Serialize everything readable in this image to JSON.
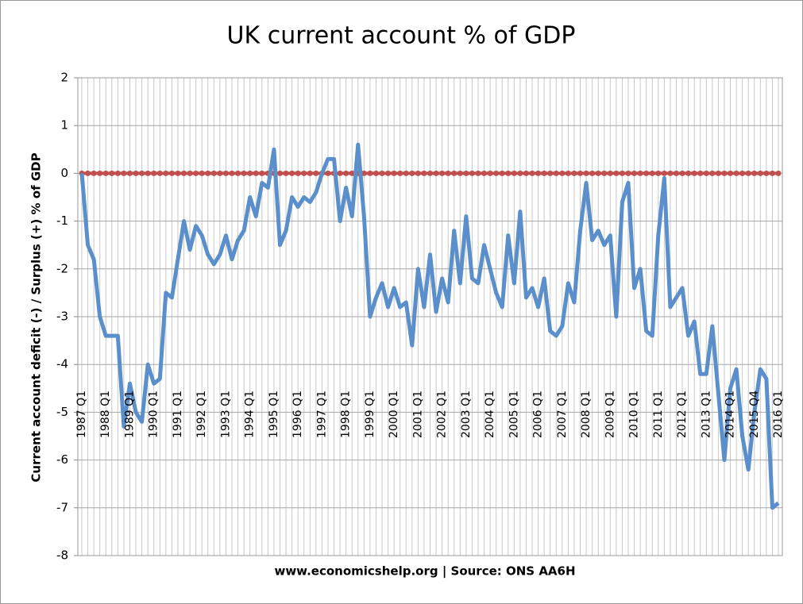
{
  "chart_data": {
    "type": "line",
    "title": "UK current account % of GDP",
    "y_label": "Current account  deficit (-) / Surplus (+) % of GDP",
    "source": "www.economicshelp.org | Source: ONS AA6H",
    "categories": [
      "1987 Q1",
      null,
      null,
      null,
      "1988 Q1",
      null,
      null,
      null,
      "1989 Q1",
      null,
      null,
      null,
      "1990 Q1",
      null,
      null,
      null,
      "1991 Q1",
      null,
      null,
      null,
      "1992 Q1",
      null,
      null,
      null,
      "1993 Q1",
      null,
      null,
      null,
      "1994 Q1",
      null,
      null,
      null,
      "1995 Q1",
      null,
      null,
      null,
      "1996 Q1",
      null,
      null,
      null,
      "1997 Q1",
      null,
      null,
      null,
      "1998 Q1",
      null,
      null,
      null,
      "1999 Q1",
      null,
      null,
      null,
      "2000 Q1",
      null,
      null,
      null,
      "2001 Q1",
      null,
      null,
      null,
      "2002 Q1",
      null,
      null,
      null,
      "2003 Q1",
      null,
      null,
      null,
      "2004 Q1",
      null,
      null,
      null,
      "2005 Q1",
      null,
      null,
      null,
      "2006 Q1",
      null,
      null,
      null,
      "2007 Q1",
      null,
      null,
      null,
      "2008 Q1",
      null,
      null,
      null,
      "2009 Q1",
      null,
      null,
      null,
      "2010 Q1",
      null,
      null,
      null,
      "2011 Q1",
      null,
      null,
      null,
      "2012 Q1",
      null,
      null,
      null,
      "2013 Q1",
      null,
      null,
      null,
      "2014 Q1",
      null,
      null,
      null,
      "2015 Q4",
      null,
      null,
      null,
      "2016 Q1"
    ],
    "series": [
      {
        "color": "#5b8fcb",
        "values": [
          0,
          -1.5,
          -1.8,
          -3.0,
          -3.4,
          -3.4,
          -3.4,
          -5.3,
          -4.4,
          -5.0,
          -5.2,
          -4.0,
          -4.4,
          -4.3,
          -2.5,
          -2.6,
          -1.8,
          -1.0,
          -1.6,
          -1.1,
          -1.3,
          -1.7,
          -1.9,
          -1.7,
          -1.3,
          -1.8,
          -1.4,
          -1.2,
          -0.5,
          -0.9,
          -0.2,
          -0.3,
          0.5,
          -1.5,
          -1.2,
          -0.5,
          -0.7,
          -0.5,
          -0.6,
          -0.4,
          0,
          0.3,
          0.3,
          -1.0,
          -0.3,
          -0.9,
          0.6,
          -0.9,
          -3.0,
          -2.6,
          -2.3,
          -2.8,
          -2.4,
          -2.8,
          -2.7,
          -3.6,
          -2.0,
          -2.8,
          -1.7,
          -2.9,
          -2.2,
          -2.7,
          -1.2,
          -2.3,
          -0.9,
          -2.2,
          -2.3,
          -1.5,
          -2.0,
          -2.5,
          -2.8,
          -1.3,
          -2.3,
          -0.8,
          -2.6,
          -2.4,
          -2.8,
          -2.2,
          -3.3,
          -3.4,
          -3.2,
          -2.3,
          -2.7,
          -1.2,
          -0.2,
          -1.4,
          -1.2,
          -1.5,
          -1.3,
          -3.0,
          -0.6,
          -0.2,
          -2.4,
          -2.0,
          -3.3,
          -3.4,
          -1.3,
          -0.1,
          -2.8,
          -2.6,
          -2.4,
          -3.4,
          -3.1,
          -4.2,
          -4.2,
          -3.2,
          -4.6,
          -6.0,
          -4.5,
          -4.1,
          -5.5,
          -6.2,
          -5.0,
          -4.1,
          -4.3,
          -7.0,
          -6.9
        ]
      },
      {
        "color": "#c0504d",
        "markers": true,
        "values": [
          0,
          0,
          0,
          0,
          0,
          0,
          0,
          0,
          0,
          0,
          0,
          0,
          0,
          0,
          0,
          0,
          0,
          0,
          0,
          0,
          0,
          0,
          0,
          0,
          0,
          0,
          0,
          0,
          0,
          0,
          0,
          0,
          0,
          0,
          0,
          0,
          0,
          0,
          0,
          0,
          0,
          0,
          0,
          0,
          0,
          0,
          0,
          0,
          0,
          0,
          0,
          0,
          0,
          0,
          0,
          0,
          0,
          0,
          0,
          0,
          0,
          0,
          0,
          0,
          0,
          0,
          0,
          0,
          0,
          0,
          0,
          0,
          0,
          0,
          0,
          0,
          0,
          0,
          0,
          0,
          0,
          0,
          0,
          0,
          0,
          0,
          0,
          0,
          0,
          0,
          0,
          0,
          0,
          0,
          0,
          0,
          0,
          0,
          0,
          0,
          0,
          0,
          0,
          0,
          0,
          0,
          0,
          0,
          0,
          0,
          0,
          0,
          0,
          0,
          0,
          0,
          0
        ]
      }
    ],
    "ylim": [
      -8,
      2
    ],
    "yticks": [
      -8,
      -7,
      -6,
      -5,
      -4,
      -3,
      -2,
      -1,
      0,
      1,
      2
    ],
    "grid": true
  }
}
